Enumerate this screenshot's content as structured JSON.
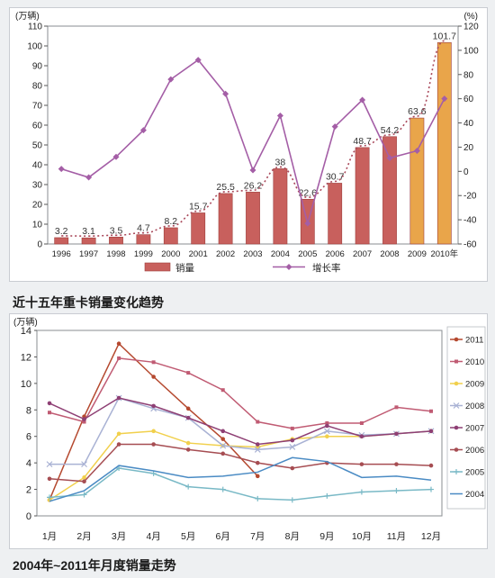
{
  "chart_data": [
    {
      "type": "bar",
      "title": "近十五年重卡销量变化趋势",
      "y_unit_left": "(万辆)",
      "y_unit_right": "(%)",
      "categories": [
        "1996",
        "1997",
        "1998",
        "1999",
        "2000",
        "2001",
        "2002",
        "2003",
        "2004",
        "2005",
        "2006",
        "2007",
        "2008",
        "2009",
        "2010年"
      ],
      "ylim_left": [
        0,
        110
      ],
      "yticks_left": [
        0,
        10,
        20,
        30,
        40,
        50,
        60,
        70,
        80,
        90,
        100,
        110
      ],
      "ylim_right": [
        -60,
        120
      ],
      "yticks_right": [
        -60,
        -40,
        -20,
        0,
        20,
        40,
        60,
        80,
        100,
        120
      ],
      "series": [
        {
          "name": "销量",
          "type": "bar",
          "axis": "left",
          "values": [
            3.2,
            3.1,
            3.5,
            4.7,
            8.2,
            15.7,
            25.5,
            26.2,
            38,
            22.6,
            30.7,
            48.7,
            54.2,
            63.6,
            101.7
          ],
          "labels": [
            "3.2",
            "3.1",
            "3.5",
            "4.7",
            "8.2",
            "15.7",
            "25.5",
            "26.2",
            "38",
            "22.6",
            "30.7",
            "48.7",
            "54.2",
            "63.6",
            "101.7"
          ]
        },
        {
          "name": "增长率",
          "type": "line",
          "axis": "right",
          "values": [
            2,
            -5,
            12,
            34,
            76,
            92,
            64,
            1,
            46,
            -43,
            37,
            59,
            11,
            17,
            60
          ]
        }
      ],
      "legend": [
        "销量",
        "增长率"
      ],
      "legend_position": "bottom",
      "colors": {
        "bar": "#c8605d",
        "bar_highlight": "#e9a54a",
        "line": "#a45ea6",
        "trend": "#a9485a"
      }
    },
    {
      "type": "line",
      "title": "2004年~2011年月度销量走势",
      "y_unit": "(万辆)",
      "categories": [
        "1月",
        "2月",
        "3月",
        "4月",
        "5月",
        "6月",
        "7月",
        "8月",
        "9月",
        "10月",
        "11月",
        "12月"
      ],
      "ylim": [
        0,
        14
      ],
      "yticks": [
        0,
        2,
        4,
        6,
        8,
        10,
        12,
        14
      ],
      "series": [
        {
          "name": "2011",
          "color": "#b5492f",
          "values": [
            1.2,
            7.5,
            13.0,
            10.5,
            8.1,
            5.8,
            3.0,
            null,
            null,
            null,
            null,
            null
          ]
        },
        {
          "name": "2010",
          "color": "#c05b73",
          "values": [
            7.8,
            7.1,
            11.9,
            11.6,
            10.8,
            9.5,
            7.1,
            6.6,
            7.0,
            7.0,
            8.2,
            7.9
          ]
        },
        {
          "name": "2009",
          "color": "#f1d04c",
          "values": [
            1.2,
            2.9,
            6.2,
            6.4,
            5.5,
            5.3,
            5.2,
            5.8,
            6.0,
            6.0,
            6.2,
            6.4
          ]
        },
        {
          "name": "2008",
          "color": "#a9b2d4",
          "values": [
            3.9,
            3.9,
            8.9,
            8.1,
            7.4,
            5.3,
            5.0,
            5.2,
            6.4,
            6.1,
            6.2,
            6.4
          ]
        },
        {
          "name": "2007",
          "color": "#8e3f74",
          "values": [
            8.5,
            7.3,
            8.9,
            8.3,
            7.4,
            6.4,
            5.4,
            5.7,
            6.8,
            6.0,
            6.2,
            6.4
          ]
        },
        {
          "name": "2006",
          "color": "#a64d52",
          "values": [
            2.8,
            2.6,
            5.4,
            5.4,
            5.0,
            4.7,
            4.0,
            3.6,
            4.0,
            3.9,
            3.9,
            3.8
          ]
        },
        {
          "name": "2005",
          "color": "#79b9c6",
          "values": [
            1.4,
            1.6,
            3.6,
            3.2,
            2.2,
            2.0,
            1.3,
            1.2,
            1.5,
            1.8,
            1.9,
            2.0
          ]
        },
        {
          "name": "2004",
          "color": "#4a8bc4",
          "values": [
            1.1,
            1.9,
            3.8,
            3.4,
            2.9,
            3.0,
            3.3,
            4.4,
            4.1,
            2.9,
            3.0,
            2.7
          ]
        }
      ],
      "legend_position": "right"
    }
  ]
}
